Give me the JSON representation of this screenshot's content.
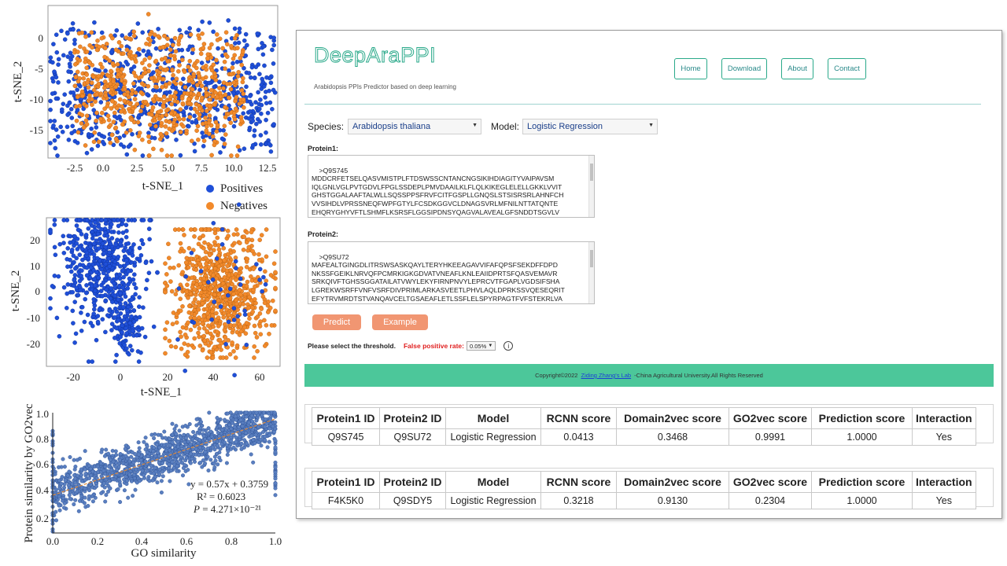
{
  "plots": {
    "tsne_top": {
      "xlabel": "t-SNE_1",
      "ylabel": "t-SNE_2",
      "xticks": [
        "-2.5",
        "0.0",
        "2.5",
        "5.0",
        "7.5",
        "10.0",
        "12.5"
      ],
      "yticks": [
        "0",
        "-5",
        "-10",
        "-15"
      ]
    },
    "legend": {
      "positives": "Positives",
      "negatives": "Negatives",
      "positive_color": "#1f4fd8",
      "negative_color": "#f28a2b"
    },
    "tsne_mid": {
      "xlabel": "t-SNE_1",
      "ylabel": "t-SNE_2",
      "xticks": [
        "-20",
        "0",
        "20",
        "40",
        "60"
      ],
      "yticks": [
        "20",
        "10",
        "0",
        "-10",
        "-20"
      ]
    },
    "scatter_bottom": {
      "xlabel": "GO similarity",
      "ylabel": "Protein similarity by GO2vec",
      "xticks": [
        "0.0",
        "0.2",
        "0.4",
        "0.6",
        "0.8",
        "1.0"
      ],
      "yticks": [
        "1.0",
        "0.8",
        "0.6",
        "0.4",
        "0.2"
      ],
      "eq_line1": "y = 0.57x + 0.3759",
      "eq_line2": "R² = 0.6023",
      "eq_line3_p": "P",
      "eq_line3_rest": " = 4.271×10⁻²¹",
      "point_color": "#5a7fc0",
      "fit_color": "#e08a3a"
    }
  },
  "app": {
    "logo": "DeepAraPPI",
    "tagline": "Arabidopsis PPIs Predictor based on deep learning",
    "nav": [
      "Home",
      "Download",
      "About",
      "Contact"
    ],
    "species_label": "Species:",
    "species_value": "Arabidopsis thaliana",
    "model_label": "Model:",
    "model_value": "Logistic Regression",
    "protein1_label": "Protein1:",
    "protein1_seq": ">Q9S745\nMDDCRFETSELQASVMISTPLFTDSWSSCNTANCNGSIKIHDIAGITYVAIPAVSM\nIQLGNLVGLPVTGDVLFPGLSSDEPLPMVDAAILKLFLQLKIKEGLELELLGKKLVVIT\nGHSTGGALAAFTALWLLSQSSPPSFRVFCITFGSPLLGNQSLSTSISRSRLAHNFCH\nVVSIHDLVPRSSNEQFWPFGTYLFCSDKGGVCLDNAGSVRLMFNILNTTATQNTE\nEHQRYGHYVFTLSHMFLKSRSFLGGSIPDNSYQAGVALAVEALGFSNDDTSGVLV",
    "protein2_label": "Protein2:",
    "protein2_seq": ">Q9SU72\nMAFEALTGINGDLITRSWSASKQAYLTERYHKEEAGAVVIFAFQPSFSEKDFFDPD\nNKSSFGEIKLNRVQFPCMRKIGKGDVATVNEAFLKNLEAIIDPRTSFQASVEMAVR\nSRKQIVFTGHSSGGATAILATVWYLEKYFIRNPNVYLEPRCVTFGAPLVGDSIFSHA\nLGREKWSRFFVNFVSRFDIVPRIMLARKASVEETLPHVLAQLDPRKSSVQESEQRIT\nEFYTRVMRDTSTVANQAVCELTGSAEAFLETLSSFLELSPYRPAGTFVFSTEKRLVA",
    "predict_label": "Predict",
    "example_label": "Example",
    "threshold_label": "Please select the threshold.",
    "fpr_label": "False positive rate:",
    "fpr_value": "0.05%",
    "footer_pre": "Copyright©2022 ",
    "footer_link": "Ziding Zhang's Lab",
    "footer_post": " -China Agricultural University.All Rights Reserved",
    "table_headers": [
      "Protein1 ID",
      "Protein2 ID",
      "Model",
      "RCNN score",
      "Domain2vec score",
      "GO2vec score",
      "Prediction score",
      "Interaction"
    ],
    "results": [
      [
        "Q9S745",
        "Q9SU72",
        "Logistic Regression",
        "0.0413",
        "0.3468",
        "0.9991",
        "1.0000",
        "Yes"
      ],
      [
        "F4K5K0",
        "Q9SDY5",
        "Logistic Regression",
        "0.3218",
        "0.9130",
        "0.2304",
        "1.0000",
        "Yes"
      ]
    ]
  }
}
